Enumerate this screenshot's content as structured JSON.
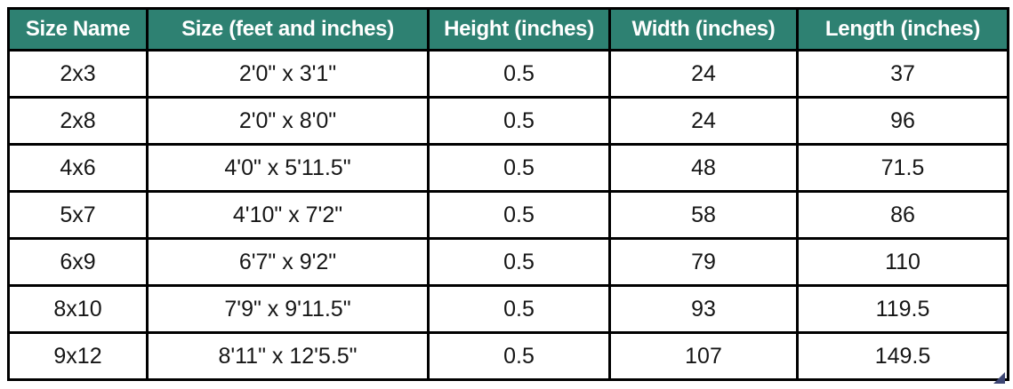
{
  "chart_data": {
    "type": "table",
    "title": "",
    "columns": [
      "Size Name",
      "Size (feet and inches)",
      "Height (inches)",
      "Width (inches)",
      "Length (inches)"
    ],
    "rows": [
      [
        "2x3",
        "2'0\" x 3'1\"",
        "0.5",
        "24",
        "37"
      ],
      [
        "2x8",
        "2'0\" x 8'0\"",
        "0.5",
        "24",
        "96"
      ],
      [
        "4x6",
        "4'0\" x 5'11.5\"",
        "0.5",
        "48",
        "71.5"
      ],
      [
        "5x7",
        "4'10\" x 7'2\"",
        "0.5",
        "58",
        "86"
      ],
      [
        "6x9",
        "6'7\" x 9'2\"",
        "0.5",
        "79",
        "110"
      ],
      [
        "8x10",
        "7'9\" x 9'11.5\"",
        "0.5",
        "93",
        "119.5"
      ],
      [
        "9x12",
        "8'11\" x 12'5.5\"",
        "0.5",
        "107",
        "149.5"
      ]
    ]
  },
  "colors": {
    "header_bg": "#2e8172",
    "header_text": "#ffffff",
    "border": "#000000",
    "row_bg": "#ffffff",
    "cell_text": "#161616",
    "handle": "#3c4573"
  },
  "icons": {
    "resize_handle": "resize-handle-icon"
  }
}
